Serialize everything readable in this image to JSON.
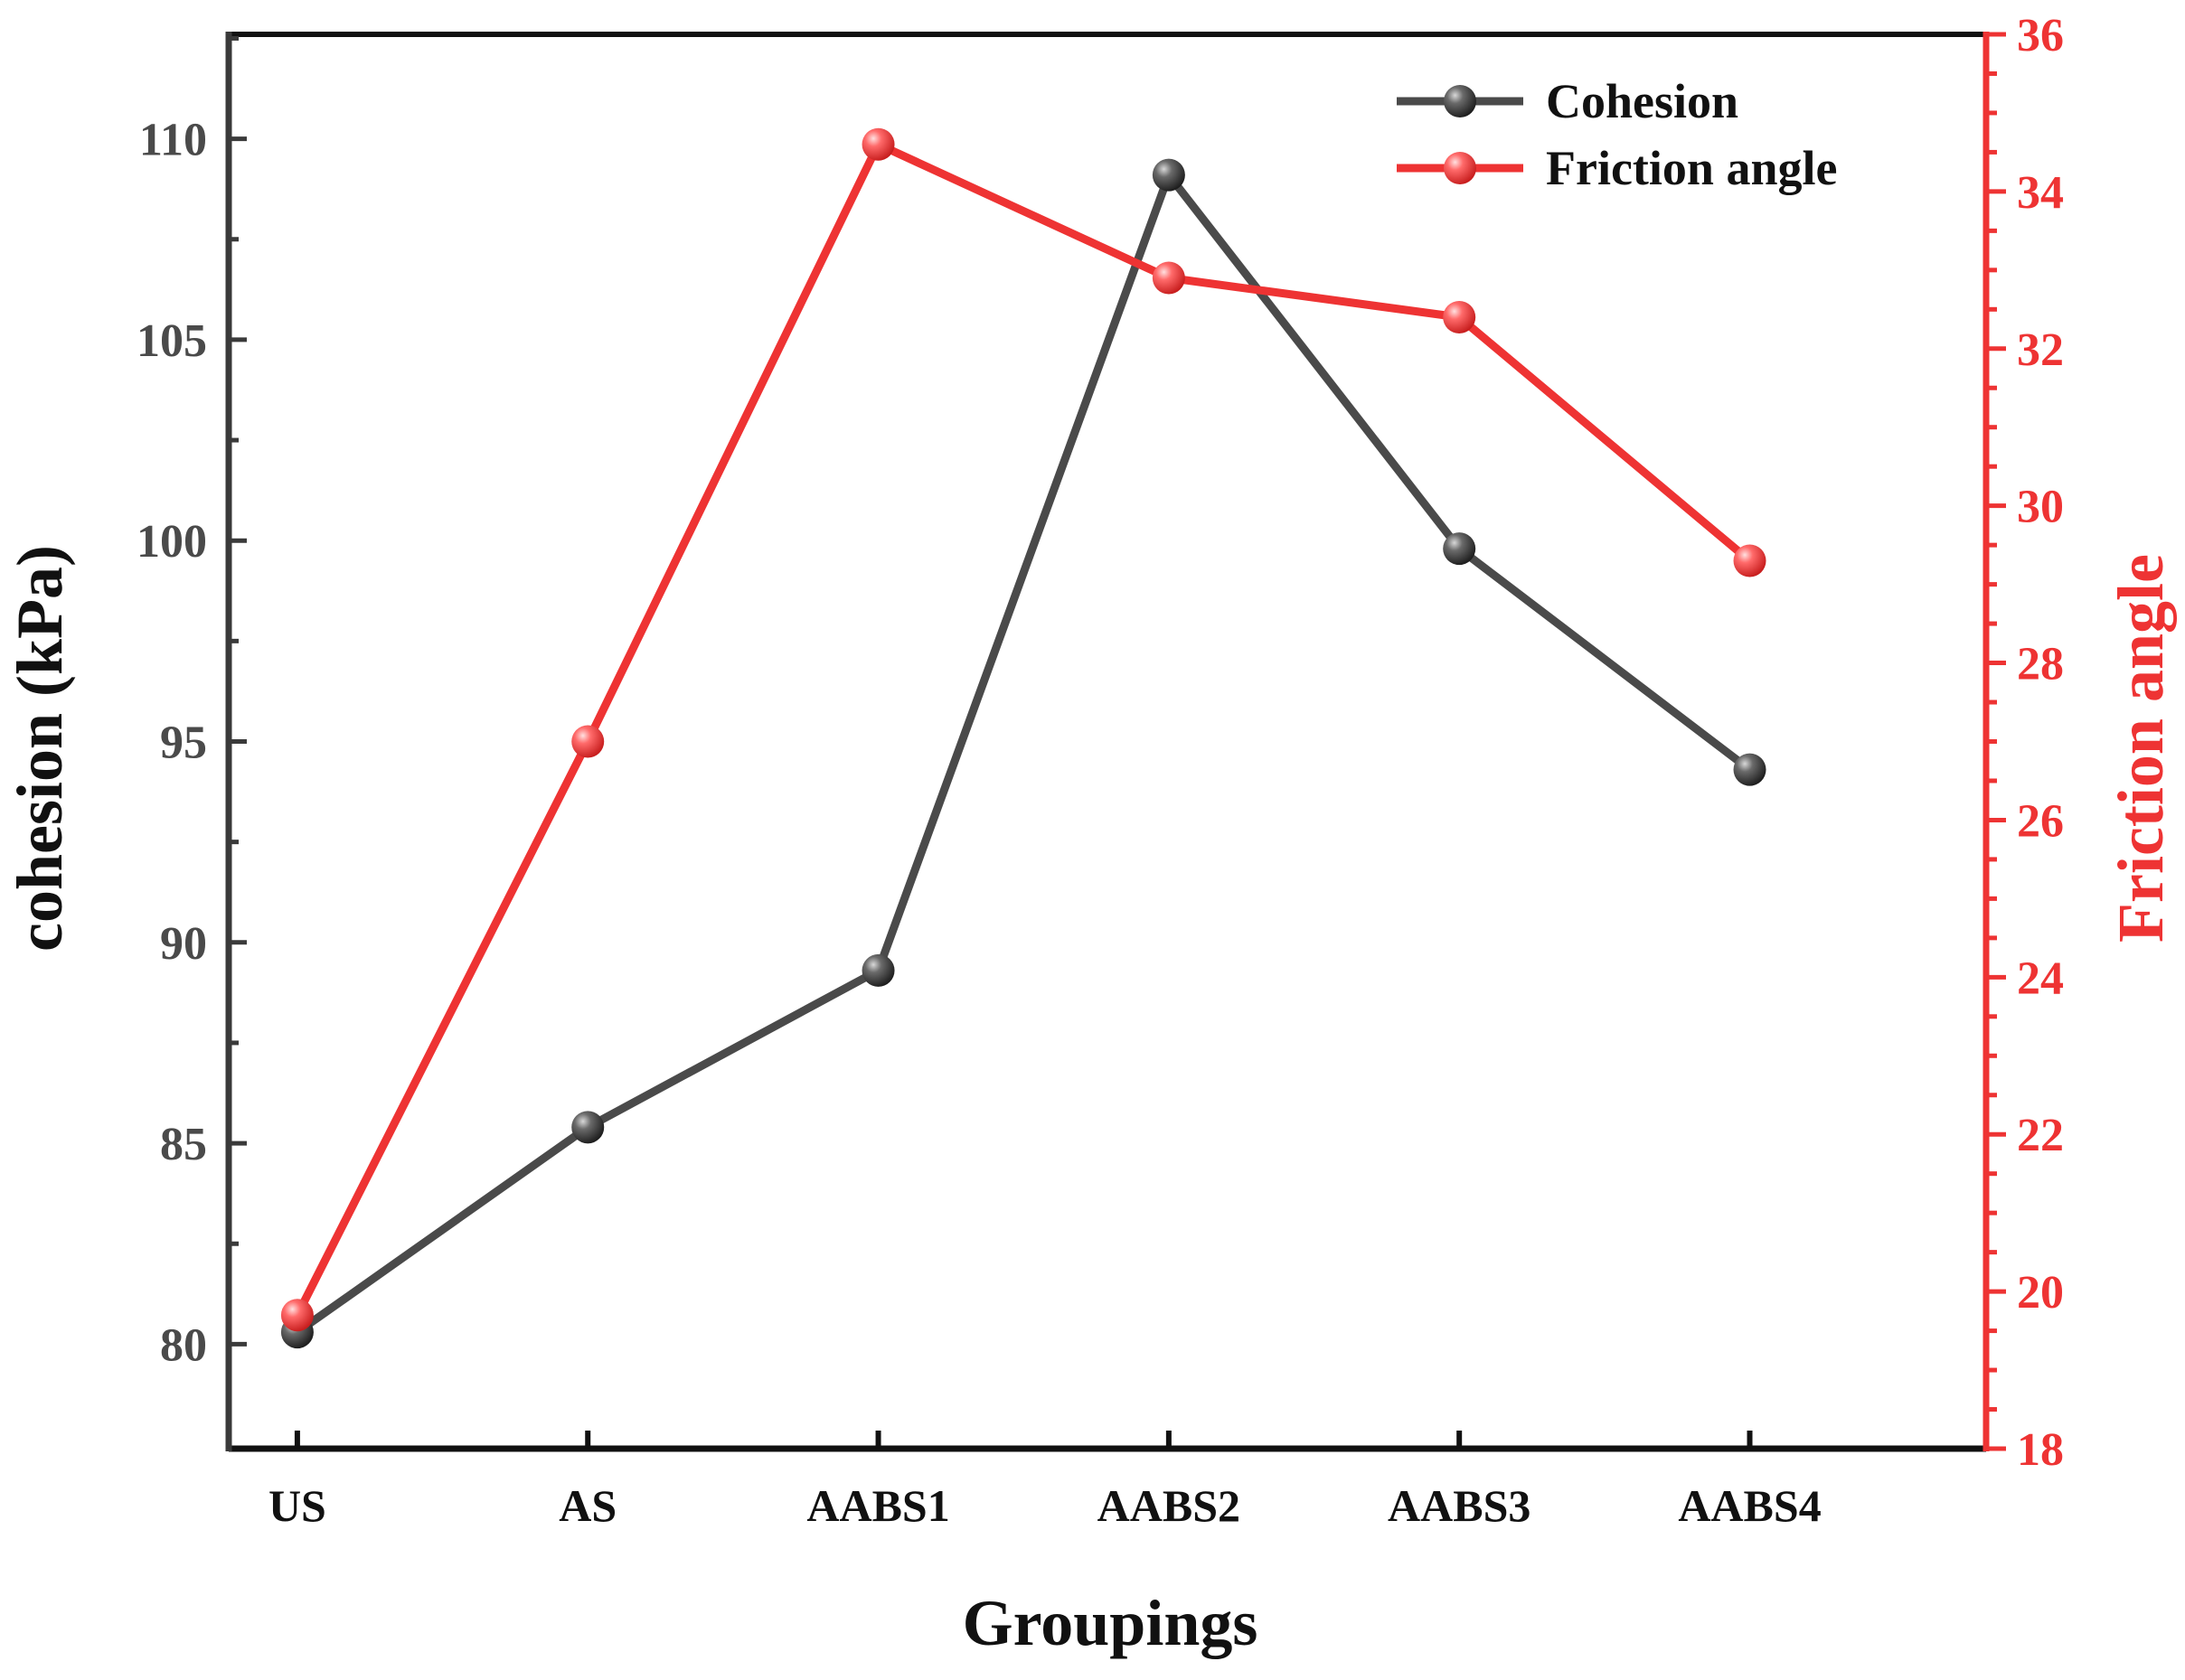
{
  "chart_data": {
    "type": "line",
    "title": "",
    "xlabel": "Groupings",
    "ylabel": "cohesion (kPa)",
    "y2label": "Friction angle",
    "categories": [
      "US",
      "AS",
      "AABS1",
      "AABS2",
      "AABS3",
      "AABS4"
    ],
    "ylim": [
      77.4,
      112.6
    ],
    "yticks": [
      80,
      85,
      90,
      95,
      100,
      105,
      110
    ],
    "y2lim": [
      18,
      36
    ],
    "y2ticks": [
      18,
      20,
      22,
      24,
      26,
      28,
      30,
      32,
      34,
      36
    ],
    "legend_position": "top-right",
    "series": [
      {
        "name": "Cohesion",
        "axis": "left",
        "color": "#4a4a4a",
        "values": [
          80.3,
          85.4,
          89.3,
          109.1,
          99.8,
          94.3
        ]
      },
      {
        "name": "Friction angle",
        "axis": "right",
        "color": "#ee3333",
        "values": [
          19.7,
          27.0,
          34.6,
          32.9,
          32.4,
          29.3
        ]
      }
    ]
  }
}
